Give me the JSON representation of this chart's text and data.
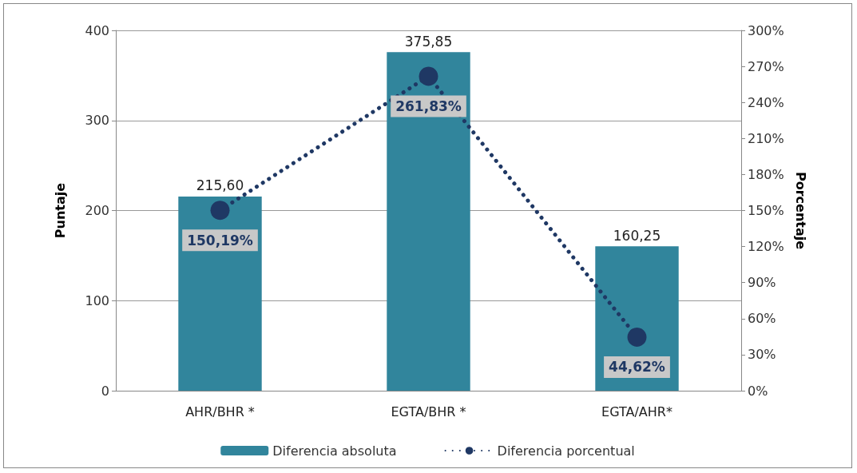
{
  "chart_data": {
    "type": "bar",
    "categories": [
      "AHR/BHR *",
      "EGTA/BHR *",
      "EGTA/AHR*"
    ],
    "ylabel": "Puntaje",
    "y2label": "Porcentaje",
    "ylim": [
      0,
      400
    ],
    "yticks": [
      0,
      100,
      200,
      300,
      400
    ],
    "y2lim": [
      0,
      300
    ],
    "y2ticks": [
      {
        "value": 0,
        "label": "0%"
      },
      {
        "value": 30,
        "label": "30%"
      },
      {
        "value": 60,
        "label": "60%"
      },
      {
        "value": 90,
        "label": "90%"
      },
      {
        "value": 120,
        "label": "120%"
      },
      {
        "value": 150,
        "label": "150%"
      },
      {
        "value": 180,
        "label": "180%"
      },
      {
        "value": 210,
        "label": "210%"
      },
      {
        "value": 240,
        "label": "240%"
      },
      {
        "value": 270,
        "label": "270%"
      },
      {
        "value": 300,
        "label": "300%"
      }
    ],
    "series": [
      {
        "name": "Diferencia absoluta",
        "color": "#31859c",
        "values": [
          215.6,
          375.85,
          160.25
        ],
        "value_labels": [
          "215,60",
          "375,85",
          "160,25"
        ]
      },
      {
        "name": "Diferencia porcentual",
        "type": "line",
        "axis": "y2",
        "color": "#1f3864",
        "values": [
          150.19,
          261.83,
          44.62
        ],
        "value_labels": [
          "150,19%",
          "261,83%",
          "44,62%"
        ],
        "marker": "circle",
        "line_style": "dotted"
      }
    ],
    "grid": "y",
    "legend": "bottom"
  }
}
